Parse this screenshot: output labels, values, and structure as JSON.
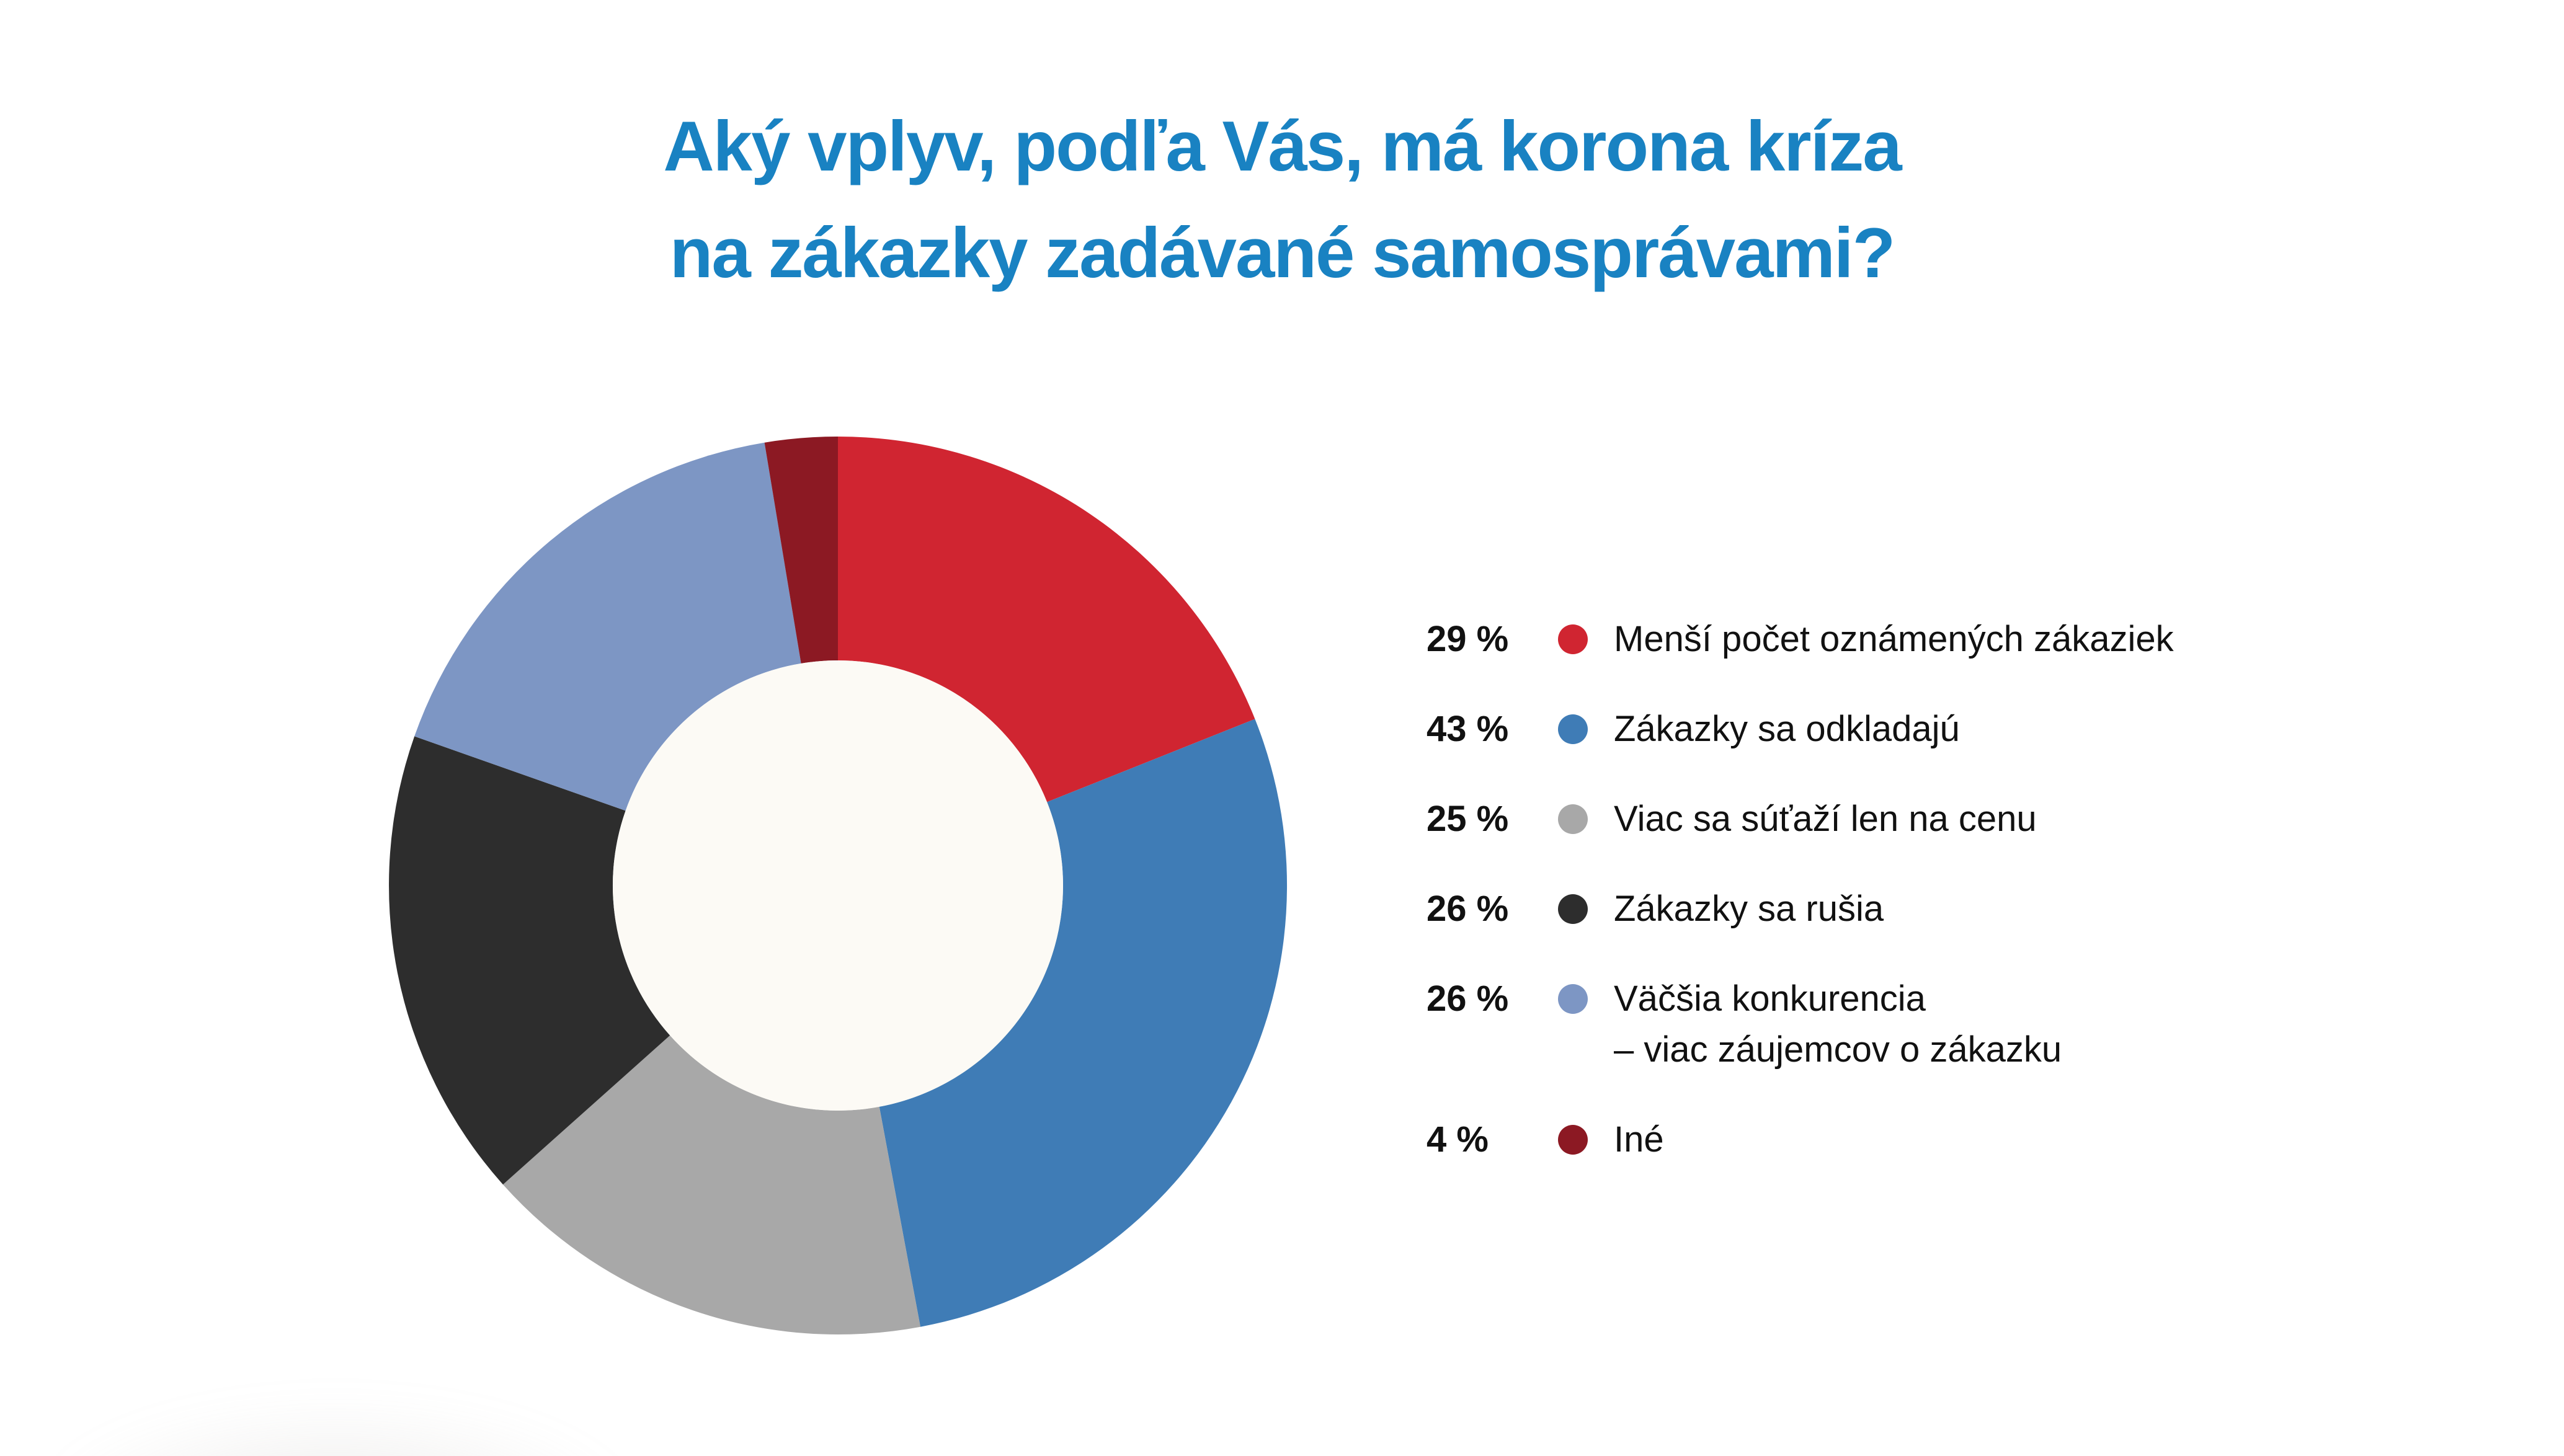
{
  "page": {
    "background": "#FFFFFF"
  },
  "title": {
    "line1": "Aký vplyv, podľa Vás, má korona kríza",
    "line2": "na zákazky zadávané samosprávami?",
    "color": "#1982C2"
  },
  "chart_data": {
    "type": "pie",
    "subtype": "donut",
    "title": "Aký vplyv, podľa Vás, má korona kríza na zákazky zadávané samosprávami?",
    "unit": "%",
    "start": "top",
    "direction": "clockwise",
    "inner_radius_ratio": 0.5,
    "hole_color": "#FCFAF5",
    "angle_note": "arc angles are values normalized to their sum (153)",
    "legend_position": "right",
    "series": [
      {
        "label": "Menší počet oznámených zákaziek",
        "value": 29,
        "color": "#D02531"
      },
      {
        "label": "Zákazky sa odkladajú",
        "value": 43,
        "color": "#3F7CB6"
      },
      {
        "label": "Viac sa súťaží len na cenu",
        "value": 25,
        "color": "#A8A8A8"
      },
      {
        "label": "Zákazky sa rušia",
        "value": 26,
        "color": "#2D2D2D"
      },
      {
        "label": "Väčšia konkurencia – viac záujemcov o zákazku",
        "value": 26,
        "color": "#7D96C4"
      },
      {
        "label": "Iné",
        "value": 4,
        "color": "#8C1923"
      }
    ]
  },
  "legend": {
    "items": [
      {
        "percent": "29 %",
        "label": "Menší počet oznámených zákaziek",
        "color": "#D02531"
      },
      {
        "percent": "43 %",
        "label": "Zákazky sa odkladajú",
        "color": "#3F7CB6"
      },
      {
        "percent": "25 %",
        "label": "Viac sa súťaží len na cenu",
        "color": "#A8A8A8"
      },
      {
        "percent": "26 %",
        "label": "Zákazky sa rušia",
        "color": "#2D2D2D"
      },
      {
        "percent": "26 %",
        "label": "Väčšia konkurencia",
        "label_line2": "– viac záujemcov o zákazku",
        "color": "#7D96C4"
      },
      {
        "percent": "4 %",
        "label": "Iné",
        "color": "#8C1923"
      }
    ]
  }
}
